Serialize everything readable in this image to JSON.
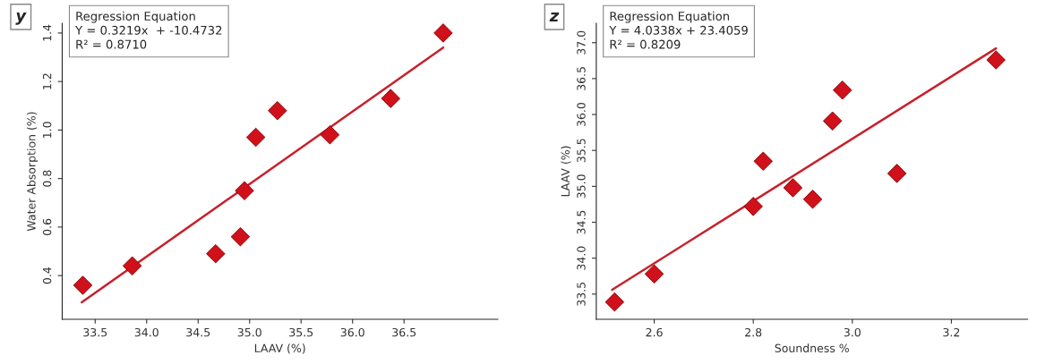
{
  "chart_data": [
    {
      "type": "scatter",
      "xlabel": "LAAV (%)",
      "ylabel": "Water Absorption (%)",
      "x": [
        33.38,
        33.86,
        34.67,
        34.91,
        34.95,
        35.06,
        35.27,
        35.78,
        36.37,
        36.88
      ],
      "series": [
        {
          "color": "#d0101a",
          "marker": "diamond",
          "values": [
            0.36,
            0.44,
            0.49,
            0.56,
            0.75,
            0.97,
            1.08,
            0.98,
            1.13,
            1.4
          ]
        },
        {
          "type": "line",
          "color": "#c8202a",
          "marker": "none",
          "x": [
            33.37,
            36.88
          ],
          "values": [
            0.29,
            1.34
          ]
        }
      ],
      "xlim": [
        33.18,
        37.41
      ],
      "xticks": [
        {
          "value": 33.5,
          "label": "33.5"
        },
        {
          "value": 34,
          "label": "34.0"
        },
        {
          "value": 34.5,
          "label": "34.5"
        },
        {
          "value": 35,
          "label": "35.0"
        },
        {
          "value": 35.5,
          "label": "35.5"
        },
        {
          "value": 36,
          "label": "36.0"
        },
        {
          "value": 36.5,
          "label": "36.5"
        }
      ],
      "ylim": [
        0.22,
        1.44
      ],
      "yticks": [
        0.4,
        0.6,
        0.8,
        {
          "value": 1.0,
          "label": "1.0"
        },
        1.2,
        1.4
      ],
      "grid": false,
      "legend": false,
      "annotations": [
        "y",
        "Regression Equation\nY = 0.3219x  + -10.4732\nR² = 0.8710"
      ]
    },
    {
      "type": "scatter",
      "xlabel": "Soundness %",
      "ylabel": "LAAV (%)",
      "x": [
        2.52,
        2.6,
        2.8,
        2.82,
        2.88,
        2.92,
        2.96,
        2.98,
        3.09,
        3.29
      ],
      "series": [
        {
          "color": "#d0101a",
          "marker": "diamond",
          "values": [
            33.39,
            33.78,
            34.72,
            35.35,
            34.98,
            34.82,
            35.91,
            36.34,
            35.18,
            36.76
          ]
        },
        {
          "type": "line",
          "color": "#c8202a",
          "marker": "none",
          "x": [
            2.515,
            3.29
          ],
          "values": [
            33.56,
            36.92
          ]
        }
      ],
      "xlim": [
        2.483,
        3.354
      ],
      "xticks": [
        2.6,
        2.8,
        {
          "value": 3.0,
          "label": "3.0"
        },
        3.2
      ],
      "ylim": [
        33.15,
        37.27
      ],
      "yticks": [
        33.5,
        {
          "value": 34,
          "label": "34.0"
        },
        34.5,
        {
          "value": 35,
          "label": "35.0"
        },
        35.5,
        {
          "value": 36,
          "label": "36.0"
        },
        36.5,
        {
          "value": 37,
          "label": "37.0"
        }
      ],
      "grid": false,
      "legend": false,
      "annotations": [
        "z",
        "Regression Equation\nY = 4.0338x + 23.4059\nR² = 0.8209"
      ]
    }
  ]
}
